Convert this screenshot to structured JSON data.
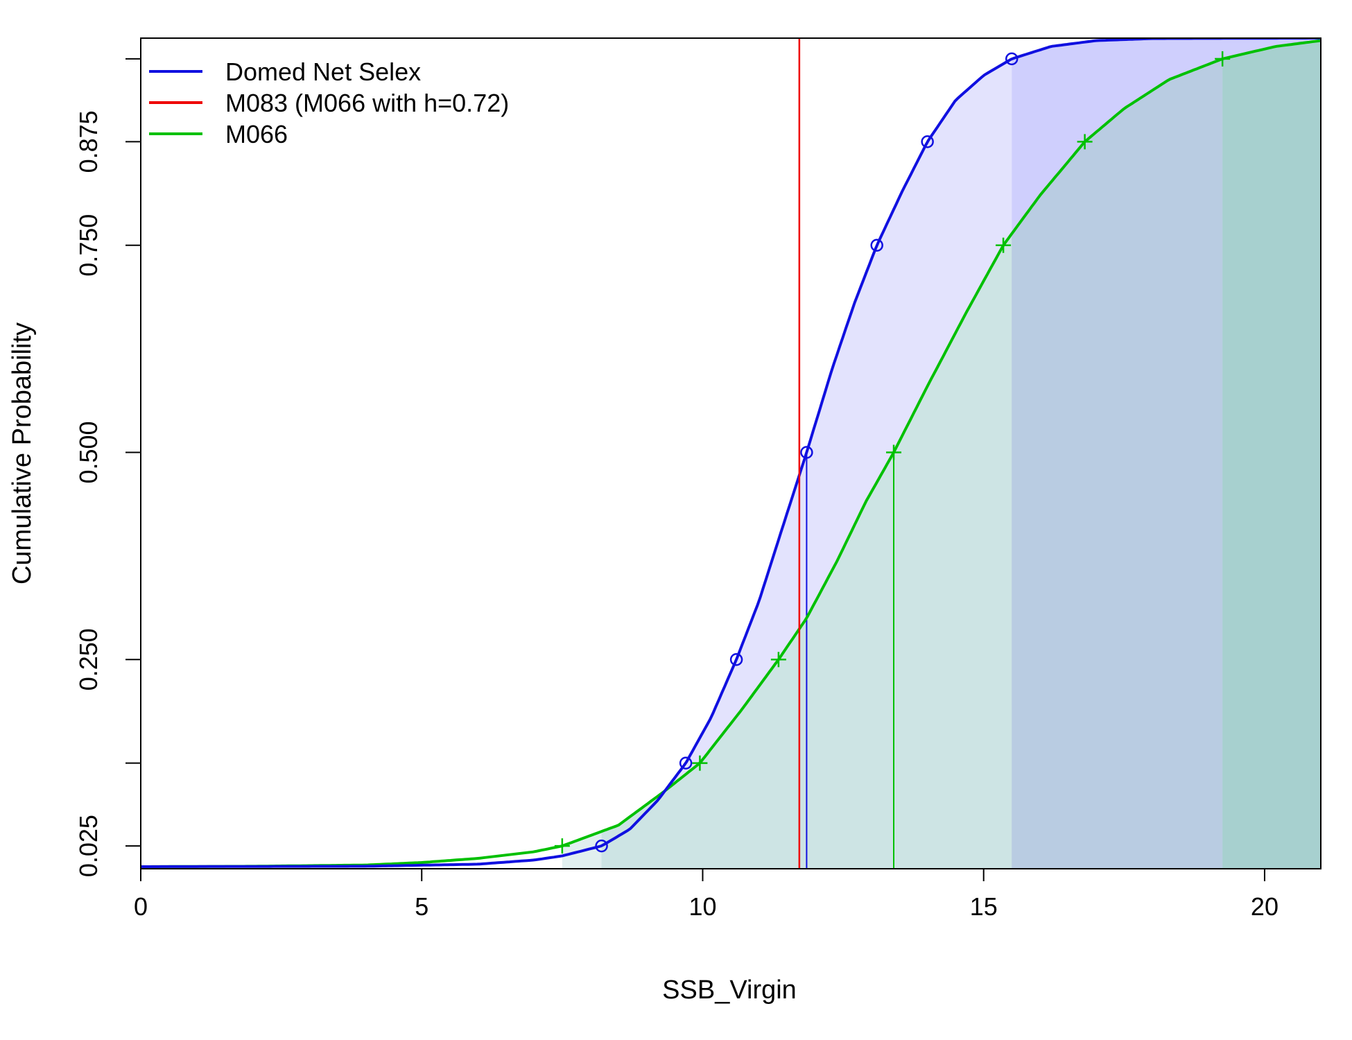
{
  "chart_data": {
    "type": "line",
    "title": "",
    "xlabel": "SSB_Virgin",
    "ylabel": "Cumulative Probability",
    "xlim": [
      0,
      21
    ],
    "ylim": [
      0,
      1
    ],
    "x_ticks": [
      0,
      5,
      10,
      15,
      20
    ],
    "x_tick_labels": [
      "0",
      "5",
      "10",
      "15",
      "20"
    ],
    "y_ticks": [
      0.025,
      0.25,
      0.5,
      0.75,
      0.875
    ],
    "y_tick_labels": [
      "0.025",
      "0.250",
      "0.500",
      "0.750",
      "0.875"
    ],
    "y_minor_ticks": [
      0.125,
      0.975
    ],
    "grid": false,
    "legend_position": "top-left",
    "series": [
      {
        "name": "Domed Net Selex",
        "color": "#1010e0",
        "marker": "circle",
        "quantile_points": [
          {
            "p": 0.025,
            "x": 8.2
          },
          {
            "p": 0.125,
            "x": 9.7
          },
          {
            "p": 0.25,
            "x": 10.6
          },
          {
            "p": 0.5,
            "x": 11.85
          },
          {
            "p": 0.75,
            "x": 13.1
          },
          {
            "p": 0.875,
            "x": 14.0
          },
          {
            "p": 0.975,
            "x": 15.5
          }
        ],
        "curve": [
          {
            "x": 0,
            "y": 0
          },
          {
            "x": 4,
            "y": 0.0005
          },
          {
            "x": 6,
            "y": 0.003
          },
          {
            "x": 7,
            "y": 0.008
          },
          {
            "x": 7.5,
            "y": 0.013
          },
          {
            "x": 8.2,
            "y": 0.025
          },
          {
            "x": 8.7,
            "y": 0.045
          },
          {
            "x": 9.2,
            "y": 0.08
          },
          {
            "x": 9.7,
            "y": 0.125
          },
          {
            "x": 10.15,
            "y": 0.18
          },
          {
            "x": 10.6,
            "y": 0.25
          },
          {
            "x": 11.0,
            "y": 0.32
          },
          {
            "x": 11.4,
            "y": 0.405
          },
          {
            "x": 11.85,
            "y": 0.5
          },
          {
            "x": 12.3,
            "y": 0.6
          },
          {
            "x": 12.7,
            "y": 0.68
          },
          {
            "x": 13.1,
            "y": 0.75
          },
          {
            "x": 13.55,
            "y": 0.815
          },
          {
            "x": 14.0,
            "y": 0.875
          },
          {
            "x": 14.5,
            "y": 0.925
          },
          {
            "x": 15.0,
            "y": 0.955
          },
          {
            "x": 15.5,
            "y": 0.975
          },
          {
            "x": 16.2,
            "y": 0.99
          },
          {
            "x": 17.0,
            "y": 0.997
          },
          {
            "x": 18.0,
            "y": 0.9995
          },
          {
            "x": 21.0,
            "y": 1.0
          }
        ],
        "median_line_x": 11.85
      },
      {
        "name": "M083 (M066 with h=0.72)",
        "color": "#ee0000",
        "type": "vertical-line",
        "x": 11.72
      },
      {
        "name": "M066",
        "color": "#00c000",
        "marker": "plus",
        "quantile_points": [
          {
            "p": 0.025,
            "x": 7.5
          },
          {
            "p": 0.125,
            "x": 9.95
          },
          {
            "p": 0.25,
            "x": 11.35
          },
          {
            "p": 0.5,
            "x": 13.4
          },
          {
            "p": 0.75,
            "x": 15.35
          },
          {
            "p": 0.875,
            "x": 16.8
          },
          {
            "p": 0.975,
            "x": 19.25
          }
        ],
        "curve": [
          {
            "x": 0,
            "y": 0
          },
          {
            "x": 2,
            "y": 0.0005
          },
          {
            "x": 4,
            "y": 0.002
          },
          {
            "x": 5,
            "y": 0.005
          },
          {
            "x": 6,
            "y": 0.01
          },
          {
            "x": 7,
            "y": 0.018
          },
          {
            "x": 7.5,
            "y": 0.025
          },
          {
            "x": 8.5,
            "y": 0.05
          },
          {
            "x": 9.3,
            "y": 0.09
          },
          {
            "x": 9.95,
            "y": 0.125
          },
          {
            "x": 10.7,
            "y": 0.19
          },
          {
            "x": 11.35,
            "y": 0.25
          },
          {
            "x": 11.85,
            "y": 0.3
          },
          {
            "x": 12.4,
            "y": 0.37
          },
          {
            "x": 12.9,
            "y": 0.44
          },
          {
            "x": 13.4,
            "y": 0.5
          },
          {
            "x": 14.0,
            "y": 0.58
          },
          {
            "x": 14.7,
            "y": 0.67
          },
          {
            "x": 15.35,
            "y": 0.75
          },
          {
            "x": 16.0,
            "y": 0.81
          },
          {
            "x": 16.8,
            "y": 0.875
          },
          {
            "x": 17.5,
            "y": 0.915
          },
          {
            "x": 18.3,
            "y": 0.95
          },
          {
            "x": 19.25,
            "y": 0.975
          },
          {
            "x": 20.2,
            "y": 0.99
          },
          {
            "x": 21.0,
            "y": 0.997
          }
        ],
        "median_line_x": 13.4
      }
    ],
    "shading": {
      "blue_light": "#e3e3fd",
      "blue_tail": "#cfcffd",
      "green_fill": "#cde4e4",
      "green_tail_overlap": "#b9cce2",
      "green_tail": "#a7d0cf"
    }
  }
}
